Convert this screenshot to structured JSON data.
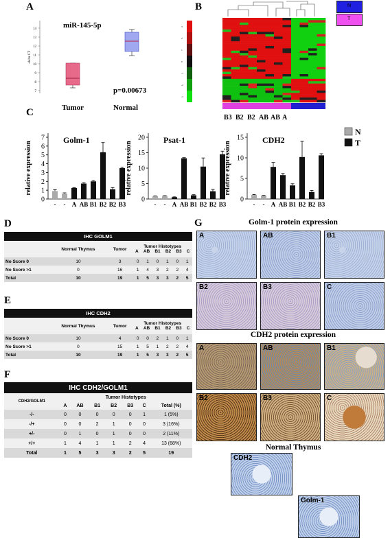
{
  "panels": {
    "A": "A",
    "B": "B",
    "C": "C",
    "D": "D",
    "E": "E",
    "F": "F",
    "G": "G"
  },
  "panelA": {
    "title": "miR-145-5p",
    "ylabel": "-delta CT",
    "yticks": [
      "7",
      "8",
      "9",
      "10",
      "11",
      "12",
      "13",
      "14"
    ],
    "groups": [
      "Tumor",
      "Normal"
    ],
    "pvalue": "p=0.00673",
    "box_color": "#c0406a",
    "box2_color": "#5060d0"
  },
  "panelB": {
    "legend": [
      "N",
      "T"
    ],
    "legend_colors": [
      "#2020e0",
      "#f050f0"
    ],
    "xlabels": [
      "B3",
      "B2",
      "B2",
      "AB",
      "AB",
      "A"
    ],
    "scale_labels": [
      "3",
      "2",
      "1",
      "0",
      "-1",
      "-2",
      "-3"
    ]
  },
  "panelC": {
    "ylabel": "relative expression",
    "legend": [
      "N",
      "T"
    ],
    "legend_colors": [
      "#aaaaaa",
      "#111111"
    ],
    "categories": [
      "-",
      "-",
      "A",
      "AB",
      "B1",
      "B2",
      "B2",
      "B3"
    ]
  },
  "chart_data": [
    {
      "type": "bar",
      "title": "Golm-1",
      "ylabel": "relative expression",
      "categories": [
        "-",
        "-",
        "A",
        "AB",
        "B1",
        "B2",
        "B2",
        "B3"
      ],
      "values": [
        0.9,
        0.6,
        1.25,
        1.75,
        2.0,
        5.3,
        1.1,
        3.5
      ],
      "errors": [
        0.15,
        0.1,
        0.05,
        0.1,
        0.1,
        1.1,
        0.2,
        0.1
      ],
      "group": [
        "N",
        "N",
        "T",
        "T",
        "T",
        "T",
        "T",
        "T"
      ],
      "ylim": [
        0,
        7
      ],
      "yticks": [
        0,
        1,
        2,
        3,
        4,
        5,
        6,
        7
      ]
    },
    {
      "type": "bar",
      "title": "Psat-1",
      "ylabel": "relative expression",
      "categories": [
        "-",
        "-",
        "A",
        "AB",
        "B1",
        "B2",
        "B2",
        "B3"
      ],
      "values": [
        0.9,
        1.0,
        0.6,
        13.2,
        1.2,
        10.5,
        2.5,
        14.5
      ],
      "errors": [
        0.1,
        0.1,
        0.1,
        0.2,
        0.2,
        2.8,
        0.6,
        1.0
      ],
      "group": [
        "N",
        "N",
        "T",
        "T",
        "T",
        "T",
        "T",
        "T"
      ],
      "ylim": [
        0,
        20
      ],
      "yticks": [
        0,
        5,
        10,
        15,
        20
      ]
    },
    {
      "type": "bar",
      "title": "CDH2",
      "ylabel": "relative expression",
      "categories": [
        "-",
        "-",
        "A",
        "AB",
        "B1",
        "B2",
        "B2",
        "B3"
      ],
      "values": [
        1.0,
        0.8,
        7.8,
        5.8,
        3.3,
        10.2,
        1.7,
        10.6
      ],
      "errors": [
        0.1,
        0.1,
        1.1,
        0.4,
        0.4,
        3.8,
        0.4,
        0.4
      ],
      "group": [
        "N",
        "N",
        "T",
        "T",
        "T",
        "T",
        "T",
        "T"
      ],
      "ylim": [
        0,
        15
      ],
      "yticks": [
        0,
        5,
        10,
        15
      ]
    },
    {
      "type": "table",
      "title": "IHC GOLM1",
      "header": [
        "",
        "Normal Thymus",
        "Tumor",
        "Tumor Histotypes"
      ],
      "histotypes": [
        "A",
        "AB",
        "B1",
        "B2",
        "B3",
        "C"
      ],
      "rows": [
        {
          "label": "No Score 0",
          "normal": "10",
          "tumor": "3",
          "values": [
            "0",
            "1",
            "0",
            "1",
            "0",
            "1"
          ]
        },
        {
          "label": "No Score >1",
          "normal": "0",
          "tumor": "16",
          "values": [
            "1",
            "4",
            "3",
            "2",
            "2",
            "4"
          ]
        },
        {
          "label": "Total",
          "normal": "10",
          "tumor": "19",
          "values": [
            "1",
            "5",
            "3",
            "3",
            "2",
            "5"
          ]
        }
      ]
    },
    {
      "type": "table",
      "title": "IHC CDH2",
      "header": [
        "",
        "Normal Thymus",
        "Tumor",
        "Tumor Histotypes"
      ],
      "histotypes": [
        "A",
        "AB",
        "B1",
        "B2",
        "B3",
        "C"
      ],
      "rows": [
        {
          "label": "No Score 0",
          "normal": "10",
          "tumor": "4",
          "values": [
            "0",
            "0",
            "2",
            "1",
            "0",
            "1"
          ]
        },
        {
          "label": "No Score >1",
          "normal": "0",
          "tumor": "15",
          "values": [
            "1",
            "5",
            "1",
            "2",
            "2",
            "4"
          ]
        },
        {
          "label": "Total",
          "normal": "10",
          "tumor": "19",
          "values": [
            "1",
            "5",
            "3",
            "3",
            "2",
            "5"
          ]
        }
      ]
    },
    {
      "type": "table",
      "title": "IHC CDH2/GOLM1",
      "corner": "CDH2/GOLM1",
      "group_header": "Tumor Histotypes",
      "columns": [
        "A",
        "AB",
        "B1",
        "B2",
        "B3",
        "C",
        "Total (%)"
      ],
      "rows": [
        {
          "label": "-/-",
          "values": [
            "0",
            "0",
            "0",
            "0",
            "0",
            "1",
            "1 (5%)"
          ]
        },
        {
          "label": "-/+",
          "values": [
            "0",
            "0",
            "2",
            "1",
            "0",
            "0",
            "3 (16%)"
          ]
        },
        {
          "label": "+/-",
          "values": [
            "0",
            "1",
            "0",
            "1",
            "0",
            "0",
            "2 (11%)"
          ]
        },
        {
          "label": "+/+",
          "values": [
            "1",
            "4",
            "1",
            "1",
            "2",
            "4",
            "13 (68%)"
          ]
        },
        {
          "label": "Total",
          "values": [
            "1",
            "5",
            "3",
            "3",
            "2",
            "5",
            "19"
          ]
        }
      ]
    }
  ],
  "panelG": {
    "title1": "Golm-1 protein expression",
    "labels1": [
      "A",
      "AB",
      "B1",
      "B2",
      "B3",
      "C"
    ],
    "title2": "CDH2 protein expression",
    "labels2": [
      "A",
      "AB",
      "B1",
      "B2",
      "B3",
      "C"
    ],
    "title3": "Normal Thymus",
    "labels3": [
      "CDH2",
      "Golm-1"
    ]
  }
}
